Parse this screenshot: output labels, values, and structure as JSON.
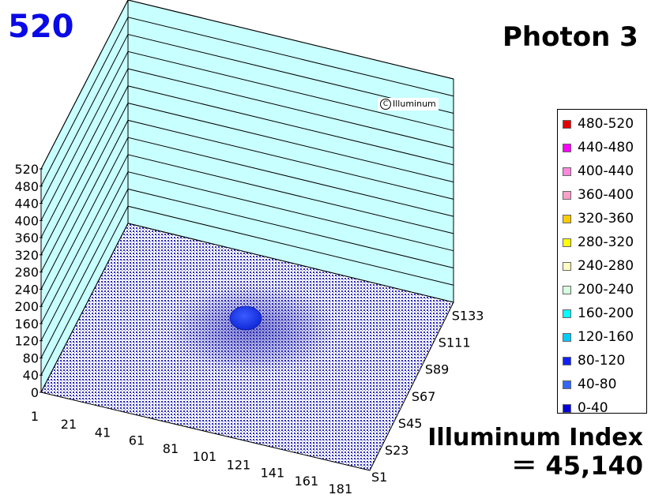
{
  "max_value_label": "520",
  "title": "Photon 3",
  "watermark": "Illuminum",
  "watermark_symbol": "C",
  "index": {
    "label": "Illuminum Index",
    "value": "＝ 45,140"
  },
  "chart_data": {
    "type": "surface3d",
    "title": "Photon 3",
    "z_ticks": [
      "0",
      "40",
      "80",
      "120",
      "160",
      "200",
      "240",
      "280",
      "320",
      "360",
      "400",
      "440",
      "480",
      "520"
    ],
    "zlim": [
      0,
      520
    ],
    "x_ticks": [
      "1",
      "21",
      "41",
      "61",
      "81",
      "101",
      "121",
      "141",
      "161",
      "181"
    ],
    "y_ticks": [
      "S1",
      "S23",
      "S45",
      "S67",
      "S89",
      "S111",
      "S133"
    ],
    "grid": true,
    "legend_position": "right",
    "legend": [
      {
        "label": "480-520",
        "color": "#e60000"
      },
      {
        "label": "440-480",
        "color": "#ff00ff"
      },
      {
        "label": "400-440",
        "color": "#ff88dd"
      },
      {
        "label": "360-400",
        "color": "#ffa0c8"
      },
      {
        "label": "320-360",
        "color": "#ffcc00"
      },
      {
        "label": "280-320",
        "color": "#ffff00"
      },
      {
        "label": "240-280",
        "color": "#ffffc0"
      },
      {
        "label": "200-240",
        "color": "#d8ffe0"
      },
      {
        "label": "160-200",
        "color": "#00ffff"
      },
      {
        "label": "120-160",
        "color": "#00ccff"
      },
      {
        "label": "80-120",
        "color": "#1020ff"
      },
      {
        "label": "40-80",
        "color": "#3366ff"
      },
      {
        "label": "0-40",
        "color": "#0000dd"
      }
    ],
    "surface": {
      "peak_range": "0-40",
      "floor_color": "#1a1aa0",
      "blob_color": "#1b3cff",
      "wall_color": "#c8ffff"
    }
  }
}
